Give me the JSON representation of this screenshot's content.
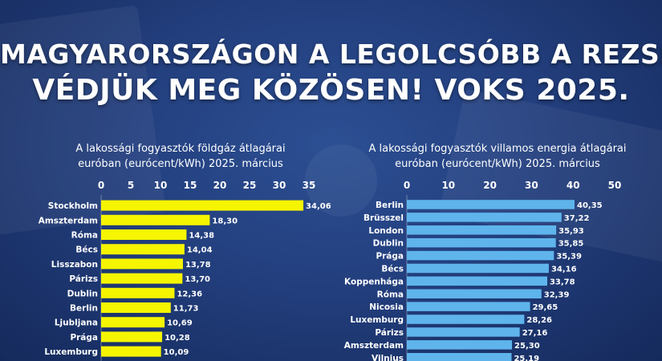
{
  "headline": {
    "line1": "MAGYARORSZÁGON A LEGOLCSÓBB A REZSI.",
    "line2": "VÉDJÜK MEG KÖZÖSEN! VOKS 2025."
  },
  "chart_data": [
    {
      "type": "bar",
      "orientation": "horizontal",
      "title_line1": "A lakossági fogyasztók földgáz átlagárai",
      "title_line2": "euróban (eurócent/kWh) 2025. március",
      "bar_color": "#f5f500",
      "xlim": [
        0,
        35
      ],
      "ticks": [
        "0",
        "5",
        "10",
        "15",
        "20",
        "25",
        "30",
        "35"
      ],
      "tick_values": [
        0,
        5,
        10,
        15,
        20,
        25,
        30,
        35
      ],
      "categories": [
        "Stockholm",
        "Amszterdam",
        "Róma",
        "Bécs",
        "Lisszabon",
        "Párizs",
        "Dublin",
        "Berlin",
        "Ljubljana",
        "Prága",
        "Luxemburg"
      ],
      "values": [
        34.06,
        18.3,
        14.38,
        14.04,
        13.78,
        13.7,
        12.36,
        11.73,
        10.69,
        10.28,
        10.09
      ],
      "value_labels": [
        "34,06",
        "18,30",
        "14,38",
        "14,04",
        "13,78",
        "13,70",
        "12,36",
        "11,73",
        "10,69",
        "10,28",
        "10,09"
      ]
    },
    {
      "type": "bar",
      "orientation": "horizontal",
      "title_line1": "A lakossági fogyasztók villamos energia átlagárai",
      "title_line2": "euróban (eurócent/kWh) 2025. március",
      "bar_color": "#5fb4ec",
      "xlim": [
        0,
        50
      ],
      "ticks": [
        "0",
        "10",
        "20",
        "30",
        "40",
        "50"
      ],
      "tick_values": [
        0,
        10,
        20,
        30,
        40,
        50
      ],
      "categories": [
        "Berlin",
        "Brüsszel",
        "London",
        "Dublin",
        "Prága",
        "Bécs",
        "Koppenhága",
        "Róma",
        "Nicosia",
        "Luxemburg",
        "Párizs",
        "Amszterdam",
        "Vilnius"
      ],
      "values": [
        40.35,
        37.22,
        35.93,
        35.85,
        35.39,
        34.16,
        33.78,
        32.39,
        29.65,
        28.26,
        27.16,
        25.3,
        25.19
      ],
      "value_labels": [
        "40,35",
        "37,22",
        "35,93",
        "35,85",
        "35,39",
        "34,16",
        "33,78",
        "32,39",
        "29,65",
        "28,26",
        "27,16",
        "25,30",
        "25,19"
      ]
    }
  ]
}
